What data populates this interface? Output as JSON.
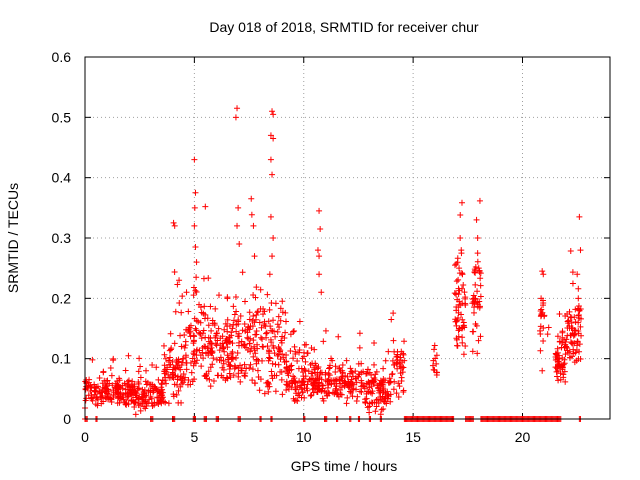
{
  "chart_data": {
    "type": "scatter",
    "title": "Day 018 of 2018, SRMTID for receiver chur",
    "xlabel": "GPS time / hours",
    "ylabel": "SRMTID / TECUs",
    "xlim": [
      0,
      24
    ],
    "ylim": [
      0,
      0.6
    ],
    "xticks": [
      0,
      5,
      10,
      15,
      20
    ],
    "xtick_labels": [
      "0",
      "5",
      "10",
      "15",
      "20"
    ],
    "yticks": [
      0,
      0.1,
      0.2,
      0.3,
      0.4,
      0.5,
      0.6
    ],
    "ytick_labels": [
      "0",
      "0.1",
      "0.2",
      "0.3",
      "0.4",
      "0.5",
      "0.6"
    ],
    "grid": true,
    "marker": "+",
    "color": "#ff0000",
    "series": [
      {
        "name": "SRMTID",
        "segments": [
          {
            "x_start": 0.0,
            "x_end": 2.2,
            "base": 0.045,
            "spread": 0.02,
            "n": 170
          },
          {
            "x_start": 2.2,
            "x_end": 3.6,
            "base": 0.04,
            "spread": 0.025,
            "n": 110
          },
          {
            "x_start": 3.6,
            "x_end": 4.5,
            "base": 0.08,
            "spread": 0.05,
            "n": 80
          },
          {
            "x_start": 4.5,
            "x_end": 5.8,
            "base": 0.12,
            "spread": 0.07,
            "n": 110
          },
          {
            "x_start": 5.8,
            "x_end": 7.2,
            "base": 0.11,
            "spread": 0.06,
            "n": 120
          },
          {
            "x_start": 7.2,
            "x_end": 9.2,
            "base": 0.12,
            "spread": 0.08,
            "n": 160
          },
          {
            "x_start": 9.2,
            "x_end": 10.4,
            "base": 0.07,
            "spread": 0.04,
            "n": 100
          },
          {
            "x_start": 10.4,
            "x_end": 12.8,
            "base": 0.06,
            "spread": 0.03,
            "n": 170
          },
          {
            "x_start": 12.8,
            "x_end": 14.0,
            "base": 0.05,
            "spread": 0.035,
            "n": 100
          },
          {
            "x_start": 14.0,
            "x_end": 14.6,
            "base": 0.08,
            "spread": 0.04,
            "n": 40
          },
          {
            "x_start": 15.9,
            "x_end": 16.1,
            "base": 0.09,
            "spread": 0.04,
            "n": 12
          },
          {
            "x_start": 16.9,
            "x_end": 17.4,
            "base": 0.18,
            "spread": 0.08,
            "n": 60
          },
          {
            "x_start": 17.7,
            "x_end": 18.1,
            "base": 0.19,
            "spread": 0.09,
            "n": 40
          },
          {
            "x_start": 20.8,
            "x_end": 21.0,
            "base": 0.17,
            "spread": 0.06,
            "n": 18
          },
          {
            "x_start": 21.1,
            "x_end": 21.3,
            "base": 0.15,
            "spread": 0.01,
            "n": 2
          },
          {
            "x_start": 21.5,
            "x_end": 22.0,
            "base": 0.1,
            "spread": 0.04,
            "n": 60
          },
          {
            "x_start": 22.0,
            "x_end": 22.7,
            "base": 0.14,
            "spread": 0.06,
            "n": 70
          }
        ],
        "peaks": [
          {
            "x": 4.05,
            "y": 0.325
          },
          {
            "x": 4.1,
            "y": 0.32
          },
          {
            "x": 4.3,
            "y": 0.23
          },
          {
            "x": 5.0,
            "y": 0.43
          },
          {
            "x": 5.05,
            "y": 0.375
          },
          {
            "x": 5.02,
            "y": 0.35
          },
          {
            "x": 5.0,
            "y": 0.32
          },
          {
            "x": 5.05,
            "y": 0.285
          },
          {
            "x": 5.1,
            "y": 0.26
          },
          {
            "x": 5.08,
            "y": 0.235
          },
          {
            "x": 6.95,
            "y": 0.515
          },
          {
            "x": 6.9,
            "y": 0.5
          },
          {
            "x": 7.0,
            "y": 0.35
          },
          {
            "x": 6.95,
            "y": 0.32
          },
          {
            "x": 7.05,
            "y": 0.29
          },
          {
            "x": 7.6,
            "y": 0.365
          },
          {
            "x": 7.7,
            "y": 0.32
          },
          {
            "x": 7.75,
            "y": 0.27
          },
          {
            "x": 8.55,
            "y": 0.51
          },
          {
            "x": 8.6,
            "y": 0.505
          },
          {
            "x": 8.5,
            "y": 0.47
          },
          {
            "x": 8.6,
            "y": 0.465
          },
          {
            "x": 8.5,
            "y": 0.43
          },
          {
            "x": 8.55,
            "y": 0.405
          },
          {
            "x": 8.5,
            "y": 0.335
          },
          {
            "x": 8.6,
            "y": 0.3
          },
          {
            "x": 8.55,
            "y": 0.27
          },
          {
            "x": 8.45,
            "y": 0.24
          },
          {
            "x": 10.7,
            "y": 0.345
          },
          {
            "x": 10.75,
            "y": 0.315
          },
          {
            "x": 10.65,
            "y": 0.28
          },
          {
            "x": 10.7,
            "y": 0.27
          },
          {
            "x": 10.7,
            "y": 0.24
          },
          {
            "x": 10.8,
            "y": 0.21
          },
          {
            "x": 14.0,
            "y": 0.165
          },
          {
            "x": 14.1,
            "y": 0.13
          },
          {
            "x": 17.15,
            "y": 0.3
          },
          {
            "x": 17.2,
            "y": 0.28
          },
          {
            "x": 17.1,
            "y": 0.25
          },
          {
            "x": 17.25,
            "y": 0.24
          },
          {
            "x": 17.9,
            "y": 0.33
          },
          {
            "x": 17.95,
            "y": 0.3
          },
          {
            "x": 17.95,
            "y": 0.275
          },
          {
            "x": 18.0,
            "y": 0.25
          },
          {
            "x": 20.9,
            "y": 0.245
          },
          {
            "x": 20.95,
            "y": 0.24
          },
          {
            "x": 20.85,
            "y": 0.2
          },
          {
            "x": 20.9,
            "y": 0.08
          },
          {
            "x": 22.6,
            "y": 0.335
          },
          {
            "x": 22.65,
            "y": 0.28
          },
          {
            "x": 22.5,
            "y": 0.24
          },
          {
            "x": 22.55,
            "y": 0.2
          }
        ],
        "zero_ranges": [
          [
            0.0,
            0.1
          ],
          [
            0.5,
            0.6
          ],
          [
            3.0,
            3.1
          ],
          [
            4.0,
            4.1
          ],
          [
            4.95,
            5.05
          ],
          [
            5.45,
            5.55
          ],
          [
            6.0,
            6.1
          ],
          [
            7.0,
            7.1
          ],
          [
            8.0,
            8.1
          ],
          [
            8.5,
            8.6
          ],
          [
            10.0,
            10.1
          ],
          [
            10.95,
            11.05
          ],
          [
            11.5,
            11.6
          ],
          [
            12.1,
            12.2
          ],
          [
            12.5,
            12.6
          ],
          [
            13.0,
            13.1
          ],
          [
            13.5,
            13.6
          ],
          [
            14.6,
            16.2
          ],
          [
            16.2,
            16.9
          ],
          [
            17.4,
            17.8
          ],
          [
            18.1,
            20.8
          ],
          [
            20.8,
            21.5
          ],
          [
            21.5,
            21.8
          ],
          [
            22.6,
            22.7
          ]
        ]
      }
    ]
  }
}
